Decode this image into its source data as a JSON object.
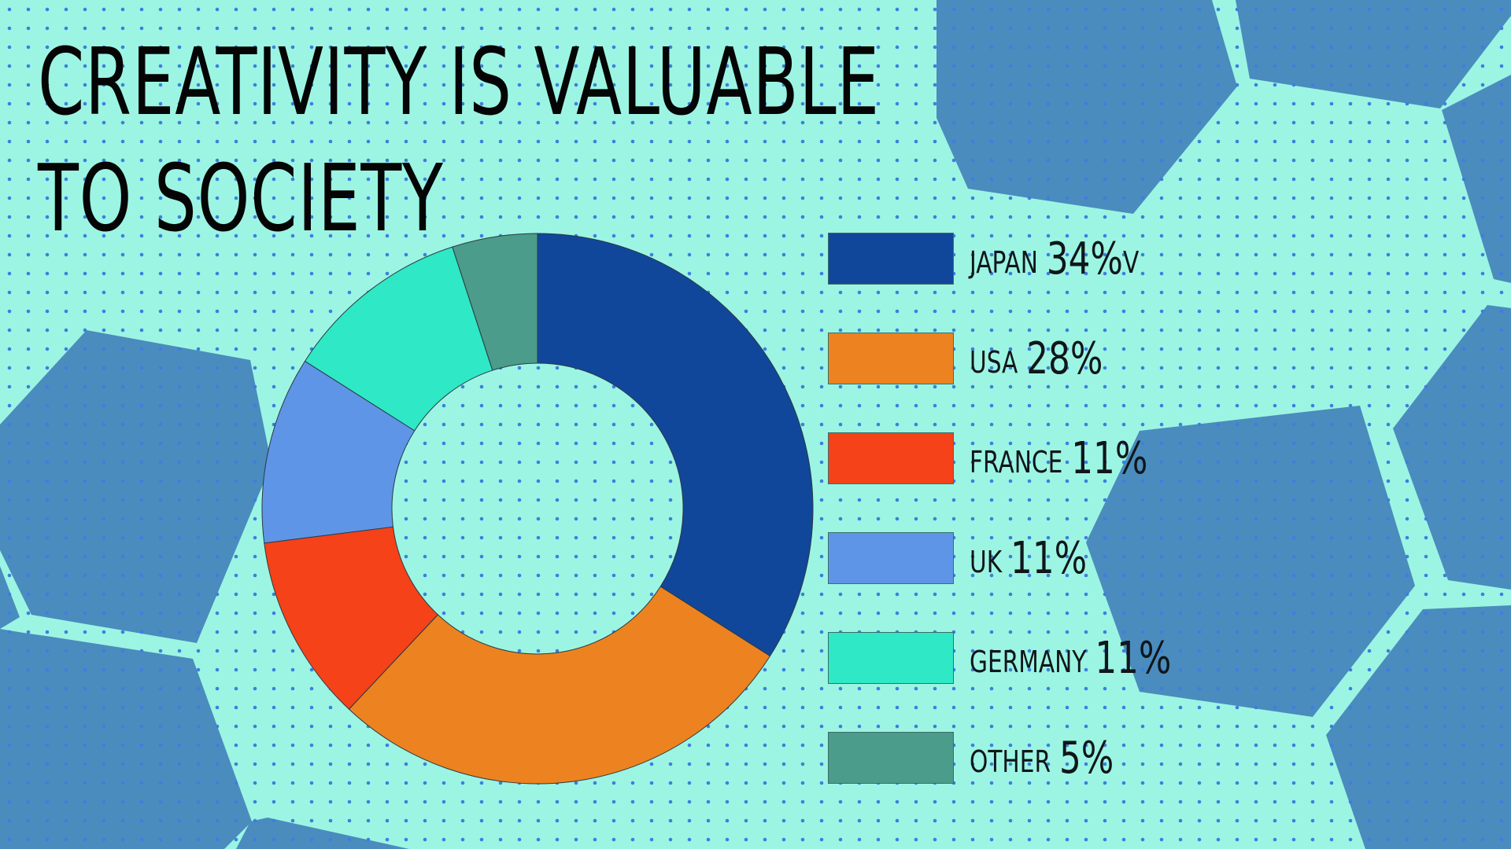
{
  "title": {
    "line1": "CREATIVITY IS VALUABLE",
    "line2": "TO SOCIETY"
  },
  "colors": {
    "background": "#9cf5e3",
    "hexagon": "#4a8cbd",
    "dot": "#3d7ee0"
  },
  "legend": {
    "items": [
      {
        "label": "JAPAN",
        "value": "34%",
        "suffix": "V"
      },
      {
        "label": "USA",
        "value": "28%",
        "suffix": ""
      },
      {
        "label": "FRANCE",
        "value": "11%",
        "suffix": ""
      },
      {
        "label": "UK",
        "value": "11%",
        "suffix": ""
      },
      {
        "label": "GERMANY",
        "value": "11%",
        "suffix": ""
      },
      {
        "label": "OTHER",
        "value": "5%",
        "suffix": ""
      }
    ]
  },
  "chart_data": {
    "type": "pie",
    "style": "donut",
    "title": "CREATIVITY IS VALUABLE TO SOCIETY",
    "categories": [
      "JAPAN",
      "USA",
      "FRANCE",
      "UK",
      "GERMANY",
      "OTHER"
    ],
    "values": [
      34,
      28,
      11,
      11,
      11,
      5
    ],
    "unit": "%",
    "colors": [
      "#11479a",
      "#ec8320",
      "#f54219",
      "#5f95e7",
      "#2fe8c5",
      "#4b9c8a"
    ],
    "legend_position": "right"
  }
}
